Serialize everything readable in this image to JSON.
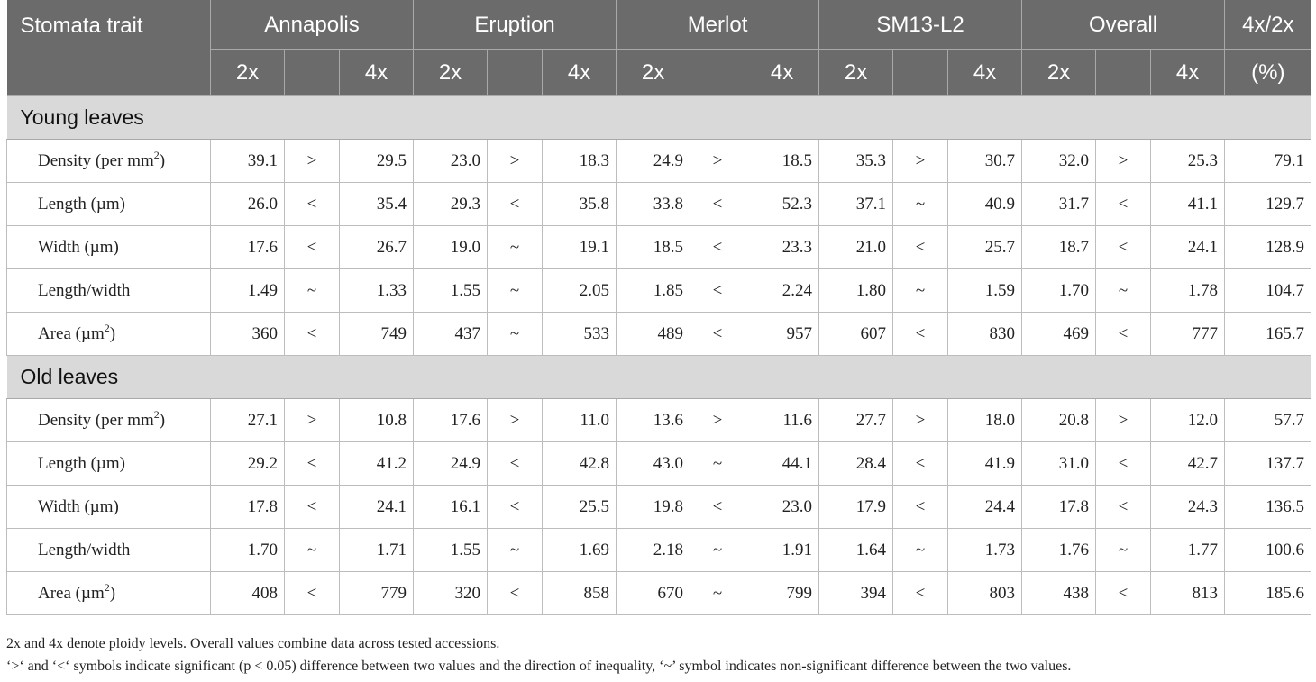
{
  "header": {
    "trait": "Stomata trait",
    "groups": [
      "Annapolis",
      "Eruption",
      "Merlot",
      "SM13-L2",
      "Overall"
    ],
    "ratio": "4x/2x",
    "ploidy_2x": "2x",
    "ploidy_4x": "4x",
    "ratio_unit": "(%)"
  },
  "sections": [
    {
      "title": "Young leaves",
      "rows": [
        {
          "name": "Density (per mm",
          "sup": "2",
          "suffix": ")",
          "cells": [
            "39.1",
            ">",
            "29.5",
            "23.0",
            ">",
            "18.3",
            "24.9",
            ">",
            "18.5",
            "35.3",
            ">",
            "30.7",
            "32.0",
            ">",
            "25.3",
            "79.1"
          ]
        },
        {
          "name": "Length (µm)",
          "sup": "",
          "suffix": "",
          "cells": [
            "26.0",
            "<",
            "35.4",
            "29.3",
            "<",
            "35.8",
            "33.8",
            "<",
            "52.3",
            "37.1",
            "~",
            "40.9",
            "31.7",
            "<",
            "41.1",
            "129.7"
          ]
        },
        {
          "name": "Width (µm)",
          "sup": "",
          "suffix": "",
          "cells": [
            "17.6",
            "<",
            "26.7",
            "19.0",
            "~",
            "19.1",
            "18.5",
            "<",
            "23.3",
            "21.0",
            "<",
            "25.7",
            "18.7",
            "<",
            "24.1",
            "128.9"
          ]
        },
        {
          "name": "Length/width",
          "sup": "",
          "suffix": "",
          "cells": [
            "1.49",
            "~",
            "1.33",
            "1.55",
            "~",
            "2.05",
            "1.85",
            "<",
            "2.24",
            "1.80",
            "~",
            "1.59",
            "1.70",
            "~",
            "1.78",
            "104.7"
          ]
        },
        {
          "name": "Area (µm",
          "sup": "2",
          "suffix": ")",
          "cells": [
            "360",
            "<",
            "749",
            "437",
            "~",
            "533",
            "489",
            "<",
            "957",
            "607",
            "<",
            "830",
            "469",
            "<",
            "777",
            "165.7"
          ]
        }
      ]
    },
    {
      "title": "Old leaves",
      "rows": [
        {
          "name": "Density (per mm",
          "sup": "2",
          "suffix": ")",
          "cells": [
            "27.1",
            ">",
            "10.8",
            "17.6",
            ">",
            "11.0",
            "13.6",
            ">",
            "11.6",
            "27.7",
            ">",
            "18.0",
            "20.8",
            ">",
            "12.0",
            "57.7"
          ]
        },
        {
          "name": "Length (µm)",
          "sup": "",
          "suffix": "",
          "cells": [
            "29.2",
            "<",
            "41.2",
            "24.9",
            "<",
            "42.8",
            "43.0",
            "~",
            "44.1",
            "28.4",
            "<",
            "41.9",
            "31.0",
            "<",
            "42.7",
            "137.7"
          ]
        },
        {
          "name": "Width (µm)",
          "sup": "",
          "suffix": "",
          "cells": [
            "17.8",
            "<",
            "24.1",
            "16.1",
            "<",
            "25.5",
            "19.8",
            "<",
            "23.0",
            "17.9",
            "<",
            "24.4",
            "17.8",
            "<",
            "24.3",
            "136.5"
          ]
        },
        {
          "name": "Length/width",
          "sup": "",
          "suffix": "",
          "cells": [
            "1.70",
            "~",
            "1.71",
            "1.55",
            "~",
            "1.69",
            "2.18",
            "~",
            "1.91",
            "1.64",
            "~",
            "1.73",
            "1.76",
            "~",
            "1.77",
            "100.6"
          ]
        },
        {
          "name": "Area (µm",
          "sup": "2",
          "suffix": ")",
          "cells": [
            "408",
            "<",
            "779",
            "320",
            "<",
            "858",
            "670",
            "~",
            "799",
            "394",
            "<",
            "803",
            "438",
            "<",
            "813",
            "185.6"
          ]
        }
      ]
    }
  ],
  "footnotes": [
    "2x and 4x denote ploidy levels. Overall values combine data across tested accessions.",
    "‘>‘ and ‘<‘ symbols indicate significant (p < 0.05) difference between two values and the direction of inequality, ‘~’ symbol indicates non-significant difference between the two values."
  ]
}
